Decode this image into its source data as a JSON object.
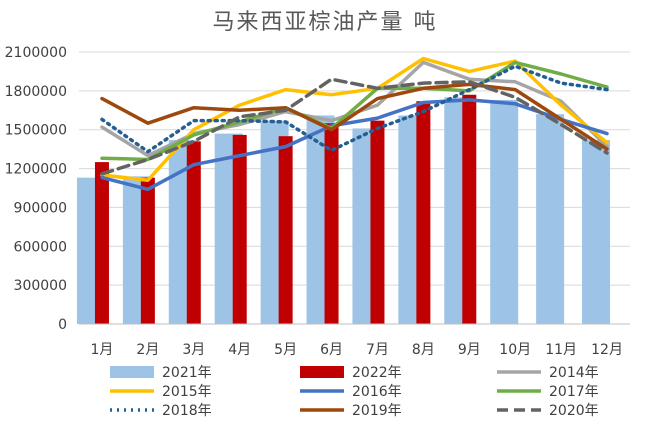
{
  "chart_data": {
    "type": "bar",
    "title": "马来西亚棕油产量    吨",
    "categories": [
      "1月",
      "2月",
      "3月",
      "4月",
      "5月",
      "6月",
      "7月",
      "8月",
      "9月",
      "10月",
      "11月",
      "12月"
    ],
    "ylim": [
      0,
      2100000
    ],
    "yticks": [
      0,
      300000,
      600000,
      900000,
      1200000,
      1500000,
      1800000,
      2100000
    ],
    "ytick_labels": [
      "0",
      "300000",
      "600000",
      "900000",
      "1200000",
      "1500000",
      "1800000",
      "2100000"
    ],
    "grid": true,
    "legend_position": "bottom",
    "series": [
      {
        "name": "2021年",
        "kind": "bar",
        "color": "#9DC3E6",
        "values": [
          1130000,
          1140000,
          1420000,
          1470000,
          1570000,
          1610000,
          1510000,
          1610000,
          1750000,
          1730000,
          1620000,
          1420000
        ]
      },
      {
        "name": "2022年",
        "kind": "bar",
        "color": "#C00000",
        "values": [
          1250000,
          1130000,
          1410000,
          1460000,
          1450000,
          1550000,
          1570000,
          1720000,
          1770000,
          null,
          null,
          null
        ]
      },
      {
        "name": "2014年",
        "kind": "line",
        "style": "solid",
        "color": "#A5A5A5",
        "values": [
          1520000,
          1300000,
          1470000,
          1540000,
          1640000,
          1570000,
          1690000,
          2020000,
          1890000,
          1870000,
          1720000,
          1370000
        ]
      },
      {
        "name": "2015年",
        "kind": "line",
        "style": "solid",
        "color": "#FFC000",
        "values": [
          1150000,
          1110000,
          1500000,
          1690000,
          1810000,
          1770000,
          1820000,
          2050000,
          1950000,
          2030000,
          1690000,
          1400000
        ]
      },
      {
        "name": "2016年",
        "kind": "line",
        "style": "solid",
        "color": "#4472C4",
        "values": [
          1130000,
          1040000,
          1230000,
          1300000,
          1370000,
          1530000,
          1590000,
          1710000,
          1730000,
          1700000,
          1580000,
          1470000
        ]
      },
      {
        "name": "2017年",
        "kind": "line",
        "style": "solid",
        "color": "#70AD47",
        "values": [
          1280000,
          1270000,
          1460000,
          1560000,
          1670000,
          1510000,
          1820000,
          1820000,
          1800000,
          2020000,
          1930000,
          1830000
        ]
      },
      {
        "name": "2018年",
        "kind": "line",
        "style": "dotted",
        "color": "#255E91",
        "values": [
          1580000,
          1330000,
          1570000,
          1570000,
          1560000,
          1340000,
          1510000,
          1640000,
          1810000,
          1990000,
          1860000,
          1810000
        ]
      },
      {
        "name": "2019年",
        "kind": "line",
        "style": "solid",
        "color": "#9E480E",
        "values": [
          1740000,
          1550000,
          1670000,
          1650000,
          1670000,
          1500000,
          1740000,
          1820000,
          1850000,
          1810000,
          1580000,
          1350000
        ]
      },
      {
        "name": "2020年",
        "kind": "line",
        "style": "dashed",
        "color": "#636363",
        "values": [
          1160000,
          1270000,
          1410000,
          1600000,
          1650000,
          1890000,
          1820000,
          1860000,
          1870000,
          1750000,
          1540000,
          1320000
        ]
      }
    ]
  }
}
